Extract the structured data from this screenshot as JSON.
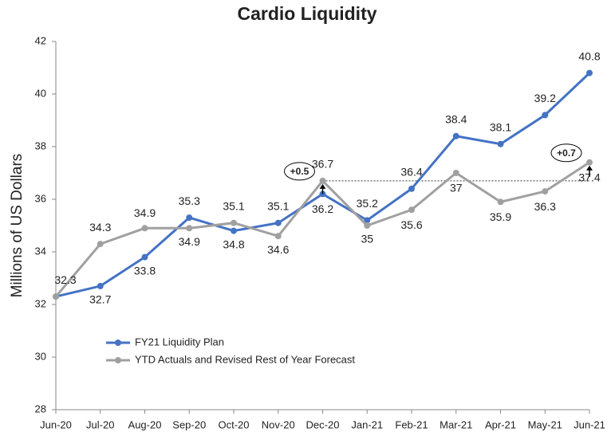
{
  "chart_data": {
    "type": "line",
    "title": "Cardio Liquidity",
    "y_label": "Millions of US Dollars",
    "categories": [
      "Jun-20",
      "Jul-20",
      "Aug-20",
      "Sep-20",
      "Oct-20",
      "Nov-20",
      "Dec-20",
      "Jan-21",
      "Feb-21",
      "Mar-21",
      "Apr-21",
      "May-21",
      "Jun-21"
    ],
    "series": [
      {
        "name": "FY21 Liquidity Plan",
        "color": "#4472c4",
        "values": [
          32.3,
          32.7,
          33.8,
          35.3,
          34.8,
          35.1,
          36.2,
          35.2,
          36.4,
          38.4,
          38.1,
          39.2,
          40.8
        ]
      },
      {
        "name": "YTD Actuals and Revised Rest of Year Forecast",
        "color": "#a0a0a0",
        "values": [
          32.3,
          34.3,
          34.9,
          34.9,
          35.1,
          34.6,
          36.7,
          35.0,
          35.6,
          37.0,
          35.9,
          36.3,
          37.4
        ]
      }
    ],
    "ylim": [
      28,
      42
    ],
    "yticks": [
      28,
      30,
      32,
      34,
      36,
      38,
      40,
      42
    ],
    "grid": false,
    "legend": "lower left",
    "annotations": [
      "+0.5",
      "+0.7"
    ]
  }
}
